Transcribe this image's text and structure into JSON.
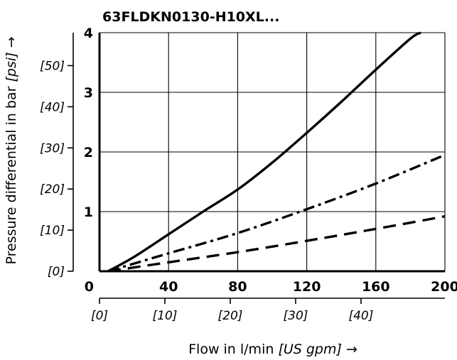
{
  "chart_data": {
    "type": "line",
    "title": "63FLDKN0130-H10XL...",
    "xlabel": "Flow in l/min",
    "xlabel_unit": "[US gpm]",
    "xlabel_arrow": "→",
    "ylabel": "Pressure differential in bar",
    "ylabel_unit": "[psi]",
    "ylabel_arrow": "→",
    "xlim": [
      0,
      200
    ],
    "ylim": [
      0,
      4
    ],
    "x_ticks": [
      "0",
      "40",
      "80",
      "120",
      "160",
      "200"
    ],
    "y_ticks": [
      "1",
      "2",
      "3",
      "4"
    ],
    "x_ticks_alt": [
      "[0]",
      "[10]",
      "[20]",
      "[30]",
      "[40]"
    ],
    "y_ticks_alt": [
      "[0]",
      "[10]",
      "[20]",
      "[30]",
      "[40]",
      "[50]"
    ],
    "grid": true,
    "series": [
      {
        "style": "solid",
        "x": [
          5,
          20,
          40,
          60,
          80,
          100,
          120,
          140,
          160,
          180,
          186
        ],
        "y": [
          0,
          0.24,
          0.62,
          1.0,
          1.37,
          1.82,
          2.32,
          2.84,
          3.38,
          3.9,
          4.0
        ]
      },
      {
        "style": "dash-dot",
        "x": [
          5,
          40,
          80,
          120,
          160,
          200
        ],
        "y": [
          0,
          0.3,
          0.64,
          1.04,
          1.47,
          1.95
        ]
      },
      {
        "style": "dashed",
        "x": [
          5,
          40,
          80,
          120,
          160,
          200
        ],
        "y": [
          0,
          0.15,
          0.32,
          0.51,
          0.71,
          0.92
        ]
      }
    ]
  }
}
